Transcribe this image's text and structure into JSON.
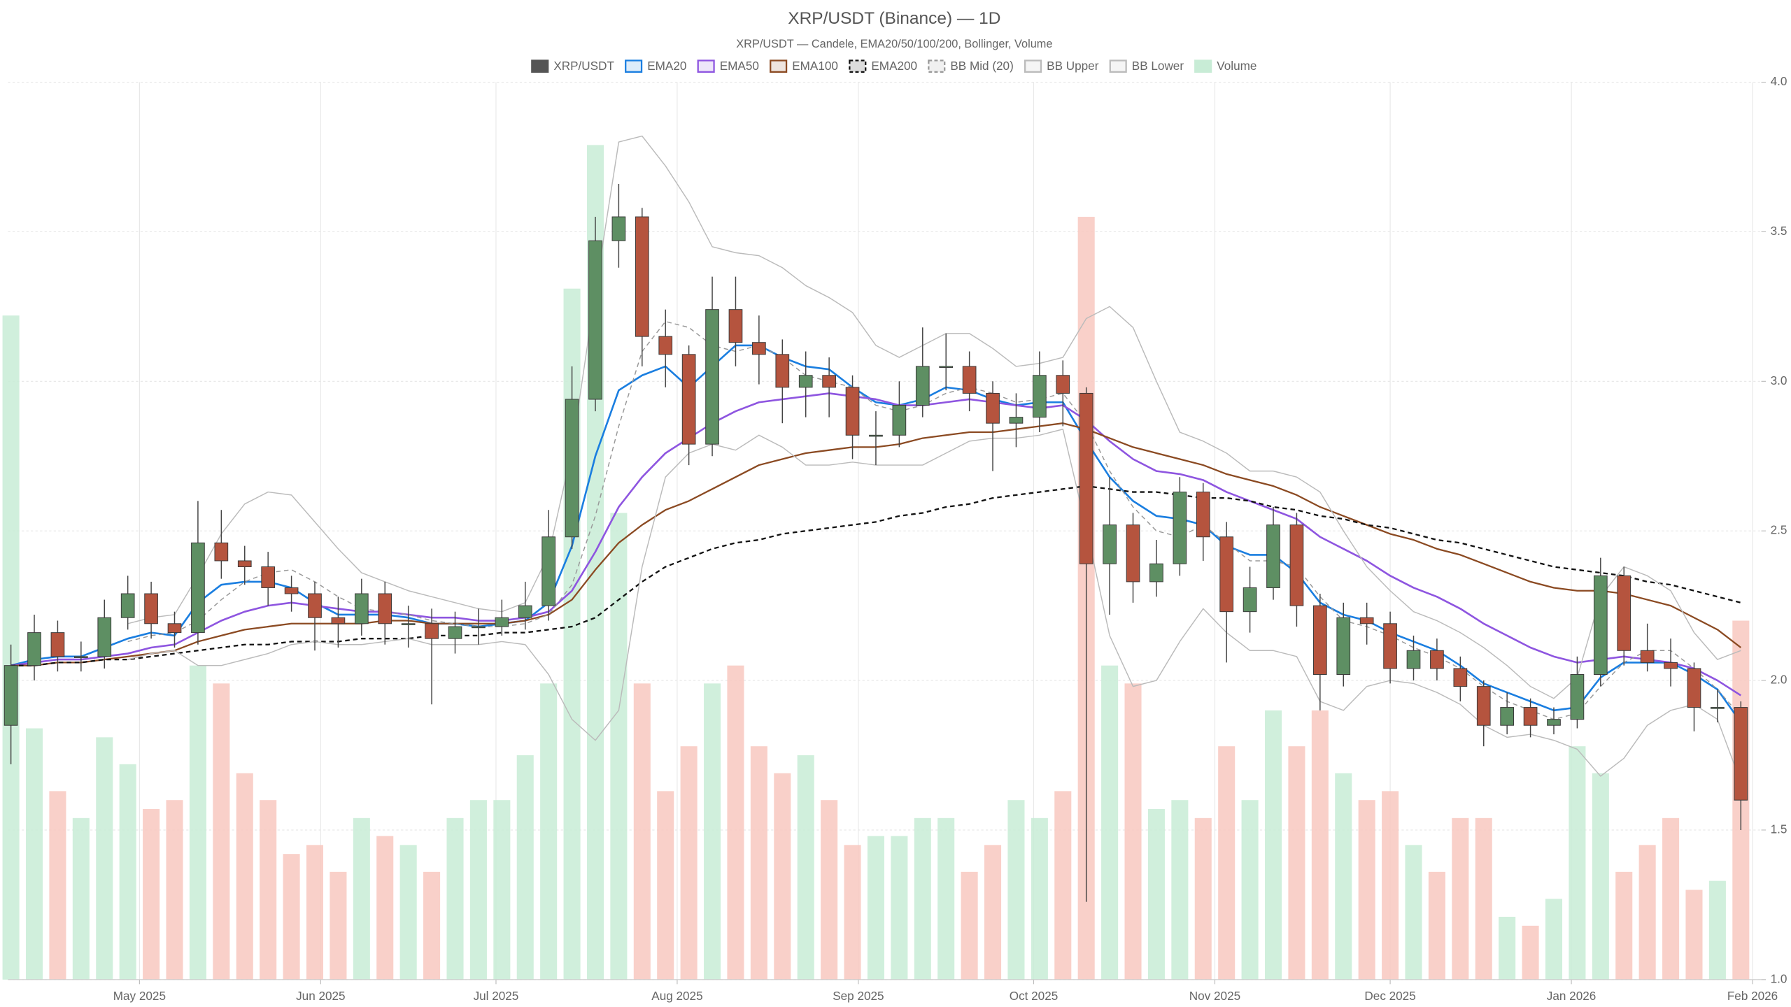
{
  "chart_data": {
    "type": "candlestick",
    "title": "XRP/USDT (Binance) — 1D",
    "subtitle": "XRP/USDT — Candele, EMA20/50/100/200, Bollinger, Volume",
    "x": [
      0,
      4,
      8,
      12,
      16,
      20,
      24,
      28,
      32,
      36,
      40,
      44,
      48,
      52,
      56,
      60,
      64,
      68,
      72,
      76,
      80,
      84,
      88,
      92,
      96,
      100,
      104,
      108,
      112,
      116,
      120,
      124,
      128,
      132,
      136,
      140,
      144,
      148,
      152,
      156,
      160,
      164,
      168,
      172,
      176,
      180,
      184,
      188,
      192,
      196,
      200,
      204,
      208,
      212,
      216,
      220,
      224,
      228,
      232,
      236,
      240,
      244,
      248,
      252,
      256,
      260,
      264,
      268,
      272,
      276,
      280,
      284,
      288,
      292,
      296
    ],
    "xlim": [
      -0.5,
      299.5
    ],
    "xticks": [
      {
        "value": 22,
        "label": "May 2025"
      },
      {
        "value": 53,
        "label": "Jun 2025"
      },
      {
        "value": 83,
        "label": "Jul 2025"
      },
      {
        "value": 114,
        "label": "Aug 2025"
      },
      {
        "value": 145,
        "label": "Sep 2025"
      },
      {
        "value": 175,
        "label": "Oct 2025"
      },
      {
        "value": 206,
        "label": "Nov 2025"
      },
      {
        "value": 236,
        "label": "Dec 2025"
      },
      {
        "value": 267,
        "label": "Jan 2026"
      },
      {
        "value": 298,
        "label": "Feb 2026"
      }
    ],
    "ylim": [
      1.0,
      4.0
    ],
    "yticks": [
      {
        "value": 1.0,
        "label": "1.0"
      },
      {
        "value": 1.5,
        "label": "1.5"
      },
      {
        "value": 2.0,
        "label": "2.0"
      },
      {
        "value": 2.5,
        "label": "2.5"
      },
      {
        "value": 3.0,
        "label": "3.0"
      },
      {
        "value": 3.5,
        "label": "3.5"
      },
      {
        "value": 4.0,
        "label": "4.0"
      }
    ],
    "grid": true,
    "series": [
      {
        "name": "XRP/USDT",
        "type": "candlestick",
        "color": "#555555",
        "up_color": "#5e8f63",
        "down_color": "#b5543e",
        "open": [
          1.85,
          2.05,
          2.16,
          2.08,
          2.08,
          2.21,
          2.29,
          2.19,
          2.16,
          2.46,
          2.4,
          2.38,
          2.31,
          2.29,
          2.21,
          2.19,
          2.29,
          2.19,
          2.19,
          2.14,
          2.18,
          2.18,
          2.21,
          2.25,
          2.48,
          2.94,
          3.47,
          3.55,
          3.15,
          3.09,
          2.79,
          3.24,
          3.13,
          3.09,
          2.98,
          3.02,
          2.98,
          2.82,
          2.82,
          2.92,
          3.05,
          3.05,
          2.96,
          2.86,
          2.88,
          3.02,
          2.96,
          2.39,
          2.52,
          2.33,
          2.39,
          2.63,
          2.48,
          2.23,
          2.31,
          2.52,
          2.25,
          2.02,
          2.21,
          2.19,
          2.04,
          2.1,
          2.04,
          1.98,
          1.85,
          1.91,
          1.85,
          1.87,
          2.02,
          2.35,
          2.1,
          2.06,
          2.04,
          1.91,
          1.91
        ],
        "high": [
          2.12,
          2.22,
          2.2,
          2.13,
          2.27,
          2.35,
          2.33,
          2.23,
          2.6,
          2.57,
          2.45,
          2.43,
          2.35,
          2.33,
          2.28,
          2.34,
          2.33,
          2.25,
          2.24,
          2.23,
          2.24,
          2.27,
          2.33,
          2.57,
          3.05,
          3.55,
          3.66,
          3.58,
          3.24,
          3.12,
          3.35,
          3.35,
          3.22,
          3.14,
          3.1,
          3.08,
          3.02,
          2.9,
          3.0,
          3.18,
          3.16,
          3.1,
          3.0,
          2.96,
          3.1,
          3.07,
          2.98,
          2.68,
          2.56,
          2.47,
          2.68,
          2.66,
          2.53,
          2.38,
          2.58,
          2.56,
          2.29,
          2.26,
          2.26,
          2.23,
          2.15,
          2.14,
          2.08,
          2.0,
          1.96,
          1.94,
          1.91,
          2.08,
          2.41,
          2.38,
          2.19,
          2.14,
          2.06,
          1.97,
          1.93
        ],
        "low": [
          1.72,
          2.0,
          2.03,
          2.03,
          2.04,
          2.17,
          2.14,
          2.11,
          2.12,
          2.34,
          2.32,
          2.25,
          2.23,
          2.1,
          2.11,
          2.15,
          2.12,
          2.11,
          1.92,
          2.09,
          2.12,
          2.15,
          2.17,
          2.2,
          2.44,
          2.9,
          3.38,
          3.05,
          2.98,
          2.72,
          2.75,
          3.05,
          2.99,
          2.86,
          2.88,
          2.88,
          2.74,
          2.72,
          2.78,
          2.88,
          2.97,
          2.9,
          2.7,
          2.78,
          2.83,
          2.85,
          1.26,
          2.22,
          2.26,
          2.28,
          2.35,
          2.4,
          2.06,
          2.16,
          2.27,
          2.18,
          1.9,
          1.98,
          2.12,
          1.99,
          2.0,
          2.0,
          1.93,
          1.78,
          1.82,
          1.81,
          1.82,
          1.84,
          1.98,
          2.05,
          2.03,
          1.98,
          1.83,
          1.86,
          1.5
        ],
        "close": [
          2.05,
          2.16,
          2.08,
          2.08,
          2.21,
          2.29,
          2.19,
          2.16,
          2.46,
          2.4,
          2.38,
          2.31,
          2.29,
          2.21,
          2.19,
          2.29,
          2.19,
          2.19,
          2.14,
          2.18,
          2.18,
          2.21,
          2.25,
          2.48,
          2.94,
          3.47,
          3.55,
          3.15,
          3.09,
          2.79,
          3.24,
          3.13,
          3.09,
          2.98,
          3.02,
          2.98,
          2.82,
          2.82,
          2.92,
          3.05,
          3.05,
          2.96,
          2.86,
          2.88,
          3.02,
          2.96,
          2.39,
          2.52,
          2.33,
          2.39,
          2.63,
          2.48,
          2.23,
          2.31,
          2.52,
          2.25,
          2.02,
          2.21,
          2.19,
          2.04,
          2.1,
          2.04,
          1.98,
          1.85,
          1.91,
          1.85,
          1.87,
          2.02,
          2.35,
          2.1,
          2.06,
          2.04,
          1.91,
          1.91,
          1.6
        ]
      },
      {
        "name": "EMA20",
        "type": "line",
        "color": "#1a7ee0",
        "width": 1.6,
        "dash": false,
        "values": [
          2.05,
          2.07,
          2.08,
          2.08,
          2.11,
          2.14,
          2.16,
          2.15,
          2.26,
          2.32,
          2.33,
          2.33,
          2.31,
          2.26,
          2.22,
          2.22,
          2.22,
          2.21,
          2.19,
          2.19,
          2.18,
          2.19,
          2.2,
          2.26,
          2.45,
          2.75,
          2.97,
          3.02,
          3.05,
          2.98,
          3.05,
          3.12,
          3.12,
          3.08,
          3.05,
          3.04,
          2.98,
          2.93,
          2.92,
          2.94,
          2.98,
          2.97,
          2.94,
          2.92,
          2.93,
          2.93,
          2.8,
          2.68,
          2.6,
          2.55,
          2.54,
          2.52,
          2.45,
          2.42,
          2.42,
          2.36,
          2.26,
          2.22,
          2.2,
          2.16,
          2.13,
          2.1,
          2.05,
          1.99,
          1.96,
          1.93,
          1.9,
          1.91,
          2.01,
          2.06,
          2.06,
          2.06,
          2.02,
          1.97,
          1.86
        ]
      },
      {
        "name": "EMA50",
        "type": "line",
        "color": "#8e55e0",
        "width": 1.6,
        "dash": false,
        "values": [
          2.05,
          2.06,
          2.07,
          2.07,
          2.08,
          2.09,
          2.11,
          2.12,
          2.16,
          2.2,
          2.23,
          2.25,
          2.26,
          2.25,
          2.24,
          2.23,
          2.23,
          2.22,
          2.21,
          2.21,
          2.2,
          2.2,
          2.21,
          2.23,
          2.3,
          2.43,
          2.58,
          2.68,
          2.76,
          2.81,
          2.86,
          2.9,
          2.93,
          2.94,
          2.95,
          2.96,
          2.95,
          2.94,
          2.92,
          2.92,
          2.93,
          2.94,
          2.93,
          2.92,
          2.91,
          2.92,
          2.87,
          2.8,
          2.74,
          2.7,
          2.69,
          2.67,
          2.63,
          2.6,
          2.57,
          2.54,
          2.48,
          2.44,
          2.4,
          2.35,
          2.31,
          2.28,
          2.24,
          2.19,
          2.15,
          2.11,
          2.08,
          2.06,
          2.07,
          2.08,
          2.07,
          2.06,
          2.04,
          2.0,
          1.95
        ]
      },
      {
        "name": "EMA100",
        "type": "line",
        "color": "#8b4a22",
        "width": 1.4,
        "dash": false,
        "values": [
          2.05,
          2.05,
          2.06,
          2.06,
          2.07,
          2.08,
          2.09,
          2.1,
          2.13,
          2.15,
          2.17,
          2.18,
          2.19,
          2.19,
          2.19,
          2.19,
          2.2,
          2.2,
          2.19,
          2.19,
          2.19,
          2.19,
          2.2,
          2.22,
          2.27,
          2.37,
          2.46,
          2.52,
          2.57,
          2.6,
          2.64,
          2.68,
          2.72,
          2.74,
          2.76,
          2.77,
          2.78,
          2.78,
          2.79,
          2.81,
          2.82,
          2.83,
          2.83,
          2.84,
          2.85,
          2.86,
          2.84,
          2.81,
          2.78,
          2.76,
          2.74,
          2.72,
          2.69,
          2.67,
          2.65,
          2.62,
          2.58,
          2.55,
          2.52,
          2.49,
          2.47,
          2.44,
          2.42,
          2.39,
          2.36,
          2.33,
          2.31,
          2.3,
          2.3,
          2.29,
          2.27,
          2.25,
          2.21,
          2.17,
          2.11
        ]
      },
      {
        "name": "EMA200",
        "type": "line",
        "color": "#111111",
        "width": 1.4,
        "dash": true,
        "values": [
          2.05,
          2.05,
          2.06,
          2.06,
          2.07,
          2.07,
          2.08,
          2.09,
          2.1,
          2.11,
          2.12,
          2.12,
          2.13,
          2.13,
          2.13,
          2.14,
          2.14,
          2.14,
          2.15,
          2.15,
          2.15,
          2.16,
          2.16,
          2.17,
          2.18,
          2.21,
          2.27,
          2.33,
          2.38,
          2.41,
          2.44,
          2.46,
          2.47,
          2.49,
          2.5,
          2.51,
          2.52,
          2.53,
          2.55,
          2.56,
          2.58,
          2.59,
          2.61,
          2.62,
          2.63,
          2.64,
          2.65,
          2.64,
          2.63,
          2.63,
          2.62,
          2.61,
          2.61,
          2.6,
          2.58,
          2.57,
          2.55,
          2.54,
          2.52,
          2.51,
          2.49,
          2.47,
          2.46,
          2.44,
          2.42,
          2.4,
          2.38,
          2.37,
          2.36,
          2.35,
          2.33,
          2.32,
          2.3,
          2.28,
          2.26
        ]
      },
      {
        "name": "BB Mid (20)",
        "type": "line",
        "color": "#999999",
        "width": 0.9,
        "dash": true,
        "values": [
          null,
          null,
          null,
          null,
          null,
          2.13,
          2.15,
          2.16,
          2.2,
          2.27,
          2.33,
          2.36,
          2.37,
          2.33,
          2.28,
          2.24,
          2.23,
          2.22,
          2.2,
          2.19,
          2.18,
          2.18,
          2.19,
          2.22,
          2.32,
          2.55,
          2.85,
          3.1,
          3.2,
          3.18,
          3.12,
          3.1,
          3.12,
          3.08,
          3.02,
          3.0,
          2.98,
          2.92,
          2.9,
          2.92,
          2.96,
          2.98,
          2.96,
          2.93,
          2.94,
          2.96,
          2.86,
          2.7,
          2.58,
          2.5,
          2.48,
          2.52,
          2.46,
          2.4,
          2.4,
          2.38,
          2.28,
          2.2,
          2.18,
          2.15,
          2.11,
          2.08,
          2.04,
          1.98,
          1.93,
          1.9,
          1.87,
          1.89,
          1.98,
          2.06,
          2.1,
          2.1,
          2.04,
          1.97,
          1.88
        ]
      },
      {
        "name": "BB Upper",
        "type": "line",
        "color": "#bbbbbb",
        "width": 0.9,
        "dash": false,
        "values": [
          null,
          null,
          null,
          null,
          null,
          2.19,
          2.21,
          2.22,
          2.35,
          2.49,
          2.59,
          2.63,
          2.62,
          2.53,
          2.44,
          2.36,
          2.33,
          2.3,
          2.28,
          2.26,
          2.24,
          2.23,
          2.26,
          2.42,
          2.77,
          3.3,
          3.8,
          3.82,
          3.72,
          3.6,
          3.45,
          3.43,
          3.42,
          3.38,
          3.32,
          3.28,
          3.23,
          3.12,
          3.08,
          3.12,
          3.16,
          3.16,
          3.11,
          3.05,
          3.06,
          3.08,
          3.21,
          3.25,
          3.18,
          3.0,
          2.83,
          2.8,
          2.76,
          2.7,
          2.7,
          2.68,
          2.63,
          2.5,
          2.38,
          2.3,
          2.23,
          2.2,
          2.16,
          2.11,
          2.05,
          1.98,
          1.94,
          2.01,
          2.28,
          2.38,
          2.35,
          2.3,
          2.16,
          2.07,
          2.1
        ]
      },
      {
        "name": "BB Lower",
        "type": "line",
        "color": "#bbbbbb",
        "width": 0.9,
        "dash": false,
        "values": [
          null,
          null,
          null,
          null,
          null,
          2.07,
          2.09,
          2.1,
          2.05,
          2.05,
          2.07,
          2.09,
          2.12,
          2.13,
          2.12,
          2.12,
          2.13,
          2.14,
          2.12,
          2.12,
          2.12,
          2.13,
          2.12,
          2.02,
          1.87,
          1.8,
          1.9,
          2.38,
          2.68,
          2.76,
          2.79,
          2.77,
          2.82,
          2.78,
          2.72,
          2.72,
          2.73,
          2.72,
          2.72,
          2.72,
          2.76,
          2.8,
          2.81,
          2.81,
          2.82,
          2.84,
          2.51,
          2.15,
          1.98,
          2.0,
          2.13,
          2.24,
          2.16,
          2.1,
          2.1,
          2.08,
          1.93,
          1.9,
          1.98,
          2.0,
          1.99,
          1.96,
          1.92,
          1.85,
          1.81,
          1.82,
          1.8,
          1.77,
          1.68,
          1.74,
          1.85,
          1.9,
          1.92,
          1.87,
          1.66
        ]
      },
      {
        "name": "Volume",
        "type": "volume",
        "color": "#c8ecd6",
        "up_color": "#c8ecd6",
        "down_color": "#f8c8c0",
        "values": [
          74,
          28,
          21,
          18,
          27,
          24,
          19,
          20,
          35,
          33,
          23,
          20,
          14,
          15,
          12,
          18,
          16,
          15,
          12,
          18,
          20,
          20,
          25,
          33,
          77,
          93,
          52,
          33,
          21,
          26,
          33,
          35,
          26,
          23,
          25,
          20,
          15,
          16,
          16,
          18,
          18,
          12,
          15,
          20,
          18,
          21,
          85,
          35,
          33,
          19,
          20,
          18,
          26,
          20,
          30,
          26,
          30,
          23,
          20,
          21,
          15,
          12,
          18,
          18,
          7,
          6,
          9,
          26,
          23,
          12,
          15,
          18,
          10,
          11,
          40
        ]
      }
    ]
  }
}
